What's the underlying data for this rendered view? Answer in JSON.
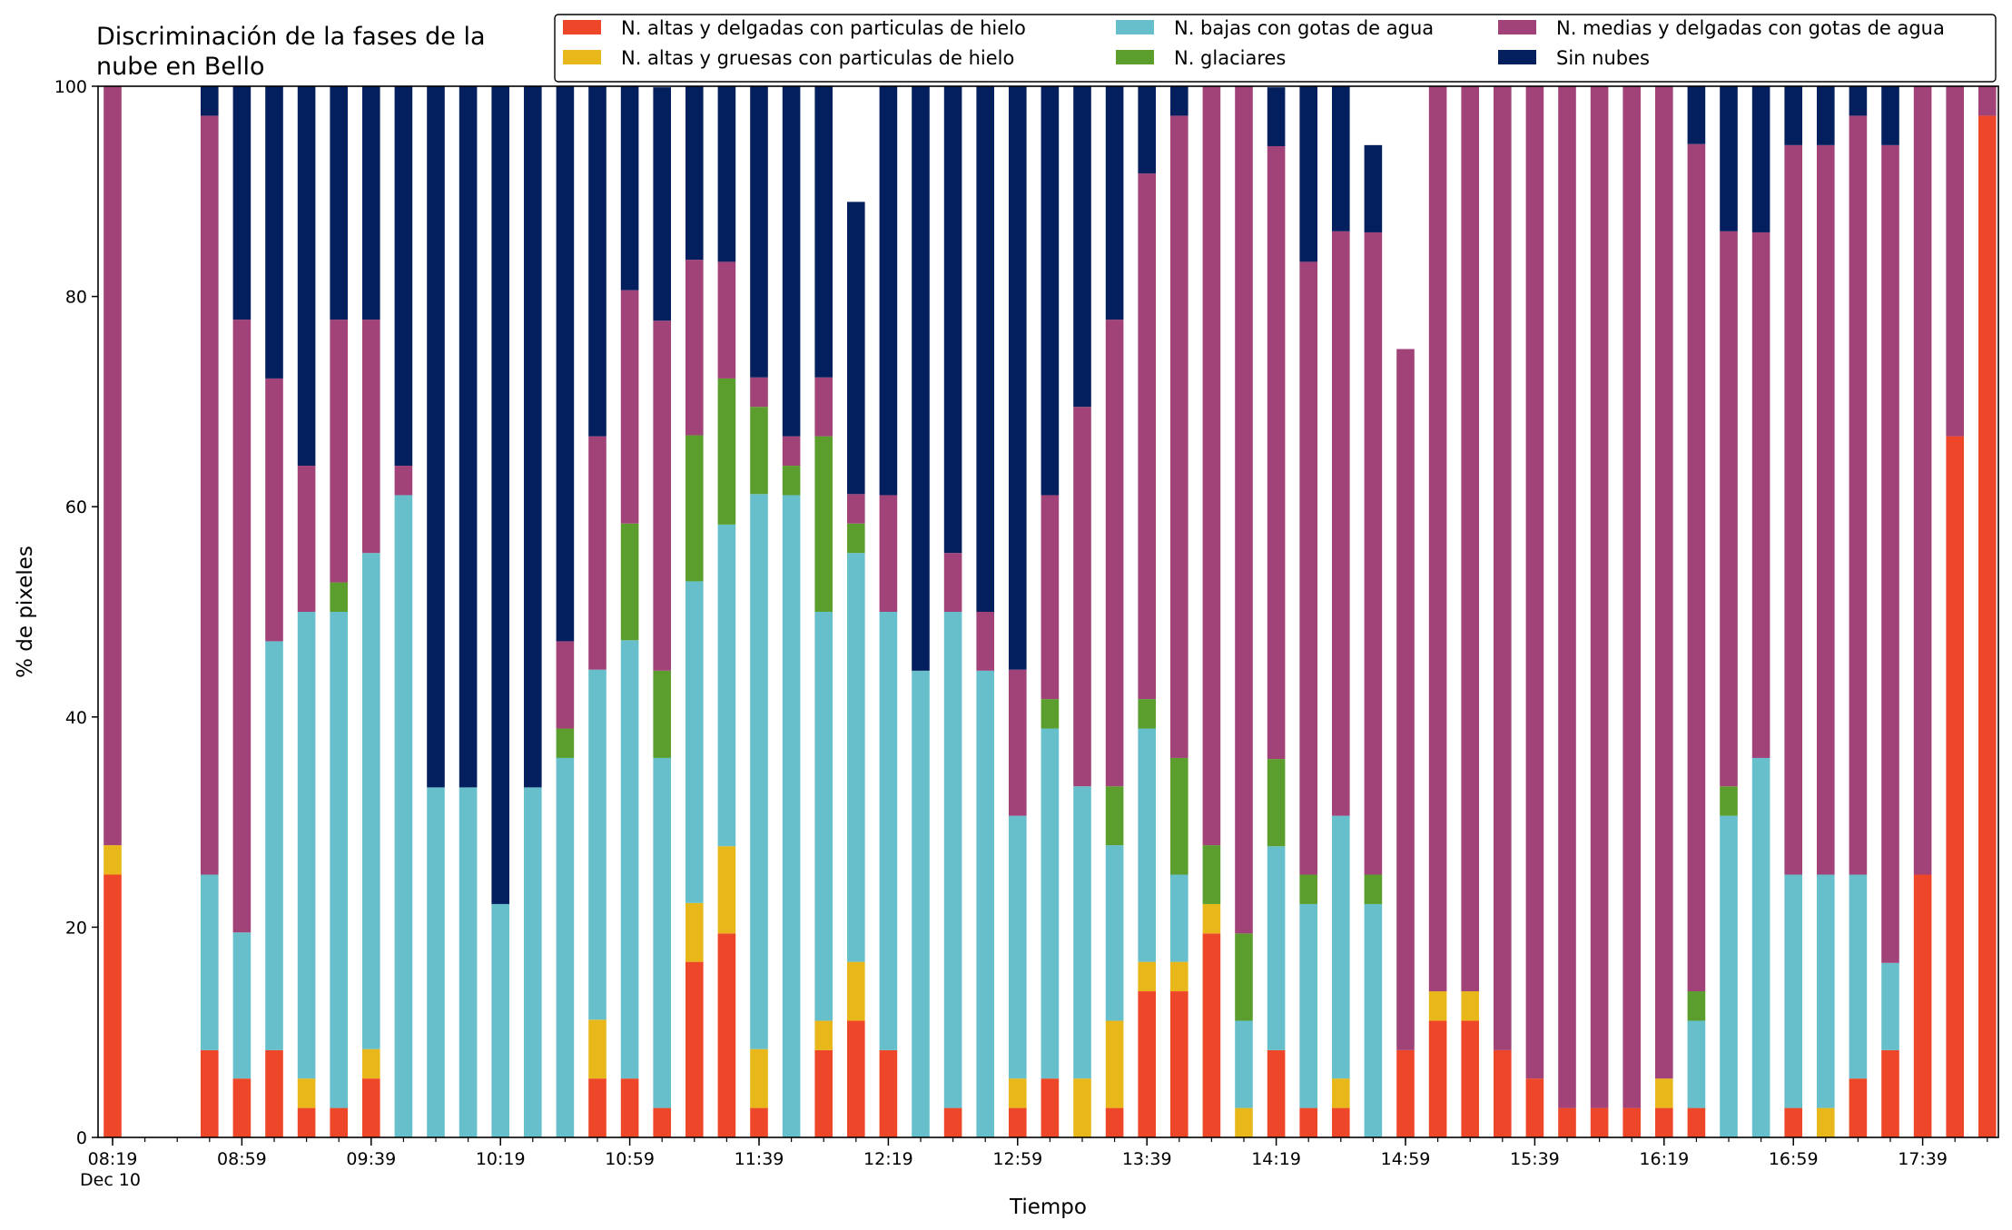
{
  "chart_data": {
    "type": "bar",
    "stacked": true,
    "title": "Discriminación de la fases de la\nnube en Bello",
    "xlabel": "Tiempo",
    "ylabel": "% de pixeles",
    "ylim": [
      0,
      100
    ],
    "yticks": [
      0,
      20,
      40,
      60,
      80,
      100
    ],
    "grid": false,
    "legend_position": "top-right",
    "x_tick_labels": [
      "08:19",
      "08:59",
      "09:39",
      "10:19",
      "10:59",
      "11:39",
      "12:19",
      "12:59",
      "13:39",
      "14:19",
      "14:59",
      "15:39",
      "16:19",
      "16:59",
      "17:39"
    ],
    "x_date_label": "Dec 10",
    "x_start_time": "08:19",
    "x_interval_minutes": 10,
    "series": [
      {
        "name": "N. altas y delgadas con particulas de hielo",
        "color": "#ee4628",
        "values": [
          25,
          null,
          null,
          8.3,
          5.6,
          8.3,
          2.8,
          2.8,
          5.6,
          0,
          0,
          0,
          0,
          0,
          0,
          5.6,
          5.6,
          2.8,
          16.7,
          19.4,
          2.8,
          0,
          8.3,
          11.1,
          8.3,
          0,
          2.8,
          0,
          2.8,
          5.6,
          0,
          2.8,
          13.9,
          13.9,
          19.4,
          0,
          8.3,
          2.8,
          2.8,
          0,
          8.3,
          11.1,
          11.1,
          8.3,
          5.6,
          2.8,
          2.8,
          2.8,
          2.8,
          2.8,
          0,
          0,
          2.8,
          0,
          5.6,
          8.3,
          25,
          66.7,
          97.2
        ]
      },
      {
        "name": "N. altas y gruesas con particulas de hielo",
        "color": "#e8b81a",
        "values": [
          2.8,
          null,
          null,
          0,
          0,
          0,
          2.8,
          0,
          2.8,
          0,
          0,
          0,
          0,
          0,
          0,
          5.6,
          0,
          0,
          5.6,
          8.3,
          5.6,
          0,
          2.8,
          5.6,
          0,
          0,
          0,
          0,
          2.8,
          0,
          5.6,
          8.3,
          2.8,
          2.8,
          2.8,
          2.8,
          0,
          0,
          2.8,
          0,
          0,
          2.8,
          2.8,
          0,
          0,
          0,
          0,
          0,
          2.8,
          0,
          0,
          0,
          0,
          2.8,
          0,
          0,
          0,
          0,
          0
        ]
      },
      {
        "name": "N. bajas con gotas de agua",
        "color": "#67bfcb",
        "values": [
          0,
          null,
          null,
          16.7,
          13.9,
          38.9,
          44.4,
          47.2,
          47.2,
          61.1,
          33.3,
          33.3,
          22.2,
          33.3,
          36.1,
          33.3,
          41.7,
          33.3,
          30.6,
          30.6,
          52.8,
          61.1,
          38.9,
          38.9,
          41.7,
          44.4,
          47.2,
          44.4,
          25,
          33.3,
          27.8,
          16.7,
          22.2,
          8.3,
          0,
          8.3,
          19.4,
          19.4,
          25,
          22.2,
          0,
          0,
          0,
          0,
          0,
          0,
          0,
          0,
          0,
          8.3,
          30.6,
          36.1,
          22.2,
          22.2,
          19.4,
          8.3,
          0,
          0,
          0
        ]
      },
      {
        "name": "N. glaciares",
        "color": "#5c9e2e",
        "values": [
          0,
          null,
          null,
          0,
          0,
          0,
          0,
          2.8,
          0,
          0,
          0,
          0,
          0,
          0,
          2.8,
          0,
          11.1,
          8.3,
          13.9,
          13.9,
          8.3,
          2.8,
          16.7,
          2.8,
          0,
          0,
          0,
          0,
          0,
          2.8,
          0,
          5.6,
          2.8,
          11.1,
          5.6,
          8.3,
          8.3,
          2.8,
          0,
          2.8,
          0,
          0,
          0,
          0,
          0,
          0,
          0,
          0,
          0,
          2.8,
          2.8,
          0,
          0,
          0,
          0,
          0,
          0,
          0,
          0
        ]
      },
      {
        "name": "N. medias y delgadas con gotas de agua",
        "color": "#a14379",
        "values": [
          72.2,
          null,
          null,
          72.2,
          58.3,
          25,
          13.9,
          25,
          22.2,
          2.8,
          0,
          0,
          0,
          0,
          8.3,
          22.2,
          22.2,
          33.3,
          16.7,
          11.1,
          2.8,
          2.8,
          5.6,
          2.8,
          11.1,
          0,
          5.6,
          5.6,
          13.9,
          19.4,
          36.1,
          44.4,
          50,
          61.1,
          72.2,
          80.6,
          58.3,
          58.3,
          55.6,
          61.1,
          66.7,
          86.1,
          86.1,
          91.7,
          94.4,
          97.2,
          97.2,
          97.2,
          94.4,
          80.6,
          52.8,
          50,
          69.4,
          69.4,
          72.2,
          77.8,
          75,
          33.3,
          2.8
        ]
      },
      {
        "name": "Sin nubes",
        "color": "#041f5e",
        "values": [
          0,
          null,
          null,
          2.8,
          22.2,
          27.8,
          36.1,
          22.2,
          22.2,
          36.1,
          66.7,
          66.7,
          77.8,
          66.7,
          52.8,
          33.3,
          19.4,
          22.2,
          16.7,
          16.7,
          27.8,
          33.3,
          27.8,
          27.8,
          38.9,
          55.6,
          44.4,
          50,
          55.6,
          38.9,
          30.6,
          22.2,
          8.3,
          2.8,
          0,
          0,
          5.6,
          16.7,
          13.9,
          8.3,
          0,
          0,
          0,
          0,
          0,
          0,
          0,
          0,
          0,
          5.6,
          13.9,
          13.9,
          5.6,
          5.6,
          2.8,
          5.6,
          0,
          0,
          0
        ]
      }
    ]
  }
}
